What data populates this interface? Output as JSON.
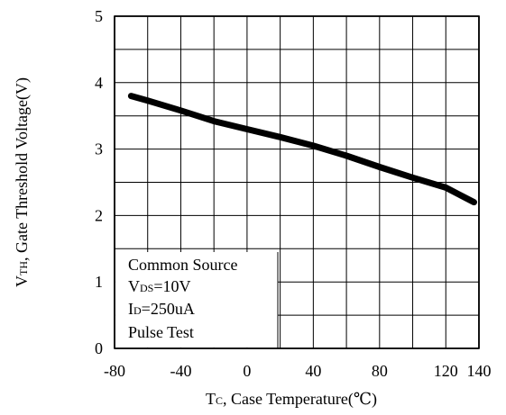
{
  "chart_data": {
    "type": "line",
    "title": "",
    "xlabel": {
      "main": "T",
      "sub": "C",
      "rest": ", Case Temperature(℃)"
    },
    "ylabel": {
      "main": "V",
      "sub": "TH",
      "rest": ", Gate Threshold Voltage(V)"
    },
    "xlim": [
      -80,
      140
    ],
    "ylim": [
      0,
      5
    ],
    "x_ticks": [
      -80,
      -40,
      0,
      40,
      80,
      120,
      140
    ],
    "y_ticks": [
      0,
      1,
      2,
      3,
      4,
      5
    ],
    "x_grid_step": 20,
    "y_grid_step": 0.5,
    "grid": true,
    "series": [
      {
        "color": "#000000",
        "x": [
          -70,
          -60,
          -40,
          -20,
          0,
          20,
          40,
          60,
          80,
          100,
          120,
          137
        ],
        "y": [
          3.8,
          3.73,
          3.58,
          3.42,
          3.3,
          3.18,
          3.05,
          2.9,
          2.73,
          2.57,
          2.42,
          2.2
        ]
      }
    ],
    "annotations": [
      {
        "main": "Common Source",
        "sub": "",
        "rest": ""
      },
      {
        "main": "V",
        "sub": "DS",
        "rest": "=10V"
      },
      {
        "main": "I",
        "sub": "D",
        "rest": "=250uA"
      },
      {
        "main": "Pulse Test",
        "sub": "",
        "rest": ""
      }
    ]
  }
}
